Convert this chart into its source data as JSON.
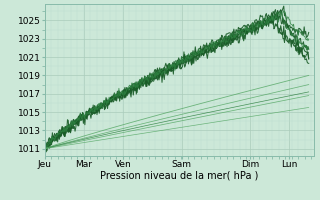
{
  "bg_color": "#cce8d8",
  "grid_color_major": "#aaccbb",
  "grid_color_minor": "#bbddd0",
  "line_dark": "#1a5c28",
  "line_mid": "#2d8040",
  "line_light": "#5aaa6a",
  "xlabel": "Pression niveau de la mer( hPa )",
  "yticks": [
    1011,
    1013,
    1015,
    1017,
    1019,
    1021,
    1023,
    1025
  ],
  "xtick_labels": [
    "Jeu",
    "Mar",
    "Ven",
    "Sam",
    "Dim",
    "Lun"
  ],
  "xtick_pos": [
    0,
    0.8,
    1.6,
    2.8,
    4.2,
    5.0
  ],
  "ylim": [
    1010.2,
    1026.8
  ],
  "xlim": [
    0,
    5.5
  ]
}
